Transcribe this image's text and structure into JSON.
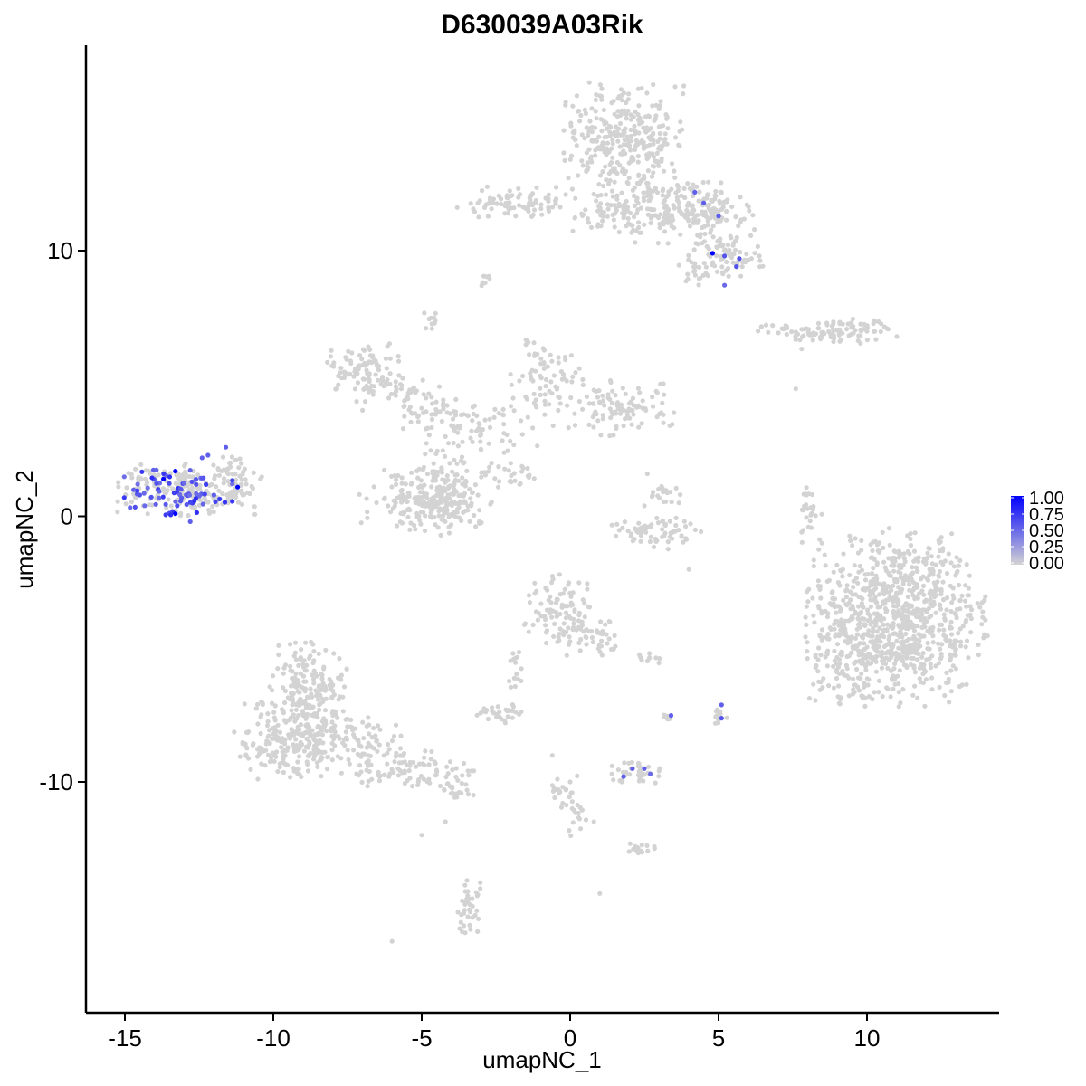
{
  "chart_data": {
    "type": "scatter",
    "title": "D630039A03Rik",
    "xlabel": "umapNC_1",
    "ylabel": "umapNC_2",
    "xlim": [
      -16.5,
      14
    ],
    "ylim": [
      -18,
      17.5
    ],
    "x_ticks": [
      -15,
      -10,
      -5,
      0,
      5,
      10
    ],
    "y_ticks": [
      -10,
      0,
      10
    ],
    "x_tick_labels": [
      "-15",
      "-10",
      "-5",
      "0",
      "5",
      "10"
    ],
    "y_tick_labels": [
      "-10",
      "0",
      "10"
    ],
    "grid": false,
    "legend_position": "right",
    "color_scale": {
      "low_color": "#d3d3d3",
      "high_color": "#0000ff",
      "breaks": [
        1.0,
        0.75,
        0.5,
        0.25,
        0.0
      ],
      "break_labels": [
        "1.00",
        "0.75",
        "0.50",
        "0.25",
        "0.00"
      ]
    },
    "clusters": [
      {
        "cx": 1.8,
        "cy": 14.2,
        "rx": 1.4,
        "ry": 1.4,
        "n": 320
      },
      {
        "cx": 3.2,
        "cy": 11.6,
        "rx": 1.3,
        "ry": 0.9,
        "n": 150
      },
      {
        "cx": 4.7,
        "cy": 11.4,
        "rx": 1.0,
        "ry": 0.6,
        "n": 90
      },
      {
        "cx": 5.3,
        "cy": 9.8,
        "rx": 0.9,
        "ry": 0.6,
        "n": 70
      },
      {
        "cx": 4.4,
        "cy": 9.3,
        "rx": 0.5,
        "ry": 0.4,
        "n": 25
      },
      {
        "cx": -1.8,
        "cy": 11.8,
        "rx": 1.5,
        "ry": 0.4,
        "n": 90
      },
      {
        "cx": 1.2,
        "cy": 11.4,
        "rx": 1.2,
        "ry": 0.5,
        "n": 50
      },
      {
        "cx": -2.8,
        "cy": 8.8,
        "rx": 0.2,
        "ry": 0.2,
        "n": 8
      },
      {
        "cx": -4.6,
        "cy": 7.4,
        "rx": 0.25,
        "ry": 0.3,
        "n": 10
      },
      {
        "cx": 8.0,
        "cy": 6.9,
        "rx": 1.1,
        "ry": 0.25,
        "n": 50
      },
      {
        "cx": 9.5,
        "cy": 7.0,
        "rx": 1.0,
        "ry": 0.35,
        "n": 60
      },
      {
        "cx": -7.0,
        "cy": 5.6,
        "rx": 0.8,
        "ry": 0.6,
        "n": 80
      },
      {
        "cx": -5.8,
        "cy": 4.6,
        "rx": 1.0,
        "ry": 0.5,
        "n": 60
      },
      {
        "cx": -4.4,
        "cy": 3.9,
        "rx": 0.8,
        "ry": 0.4,
        "n": 40
      },
      {
        "cx": -2.8,
        "cy": 3.2,
        "rx": 1.3,
        "ry": 0.8,
        "n": 60
      },
      {
        "cx": -0.8,
        "cy": 5.3,
        "rx": 0.8,
        "ry": 1.0,
        "n": 70
      },
      {
        "cx": 1.4,
        "cy": 4.1,
        "rx": 1.5,
        "ry": 0.7,
        "n": 110
      },
      {
        "cx": -4.2,
        "cy": 1.5,
        "rx": 0.5,
        "ry": 1.4,
        "n": 70
      },
      {
        "cx": -5.5,
        "cy": 0.6,
        "rx": 1.1,
        "ry": 0.8,
        "n": 130
      },
      {
        "cx": -4.0,
        "cy": 0.5,
        "rx": 0.9,
        "ry": 0.8,
        "n": 90
      },
      {
        "cx": -2.2,
        "cy": 1.5,
        "rx": 0.8,
        "ry": 0.3,
        "n": 25
      },
      {
        "cx": 3.0,
        "cy": -0.6,
        "rx": 1.2,
        "ry": 0.45,
        "n": 70
      },
      {
        "cx": 3.2,
        "cy": 0.7,
        "rx": 0.5,
        "ry": 0.4,
        "n": 20
      },
      {
        "cx": 8.1,
        "cy": 0.2,
        "rx": 0.25,
        "ry": 0.8,
        "n": 25
      },
      {
        "cx": 11.0,
        "cy": -3.8,
        "rx": 2.0,
        "ry": 2.2,
        "n": 900
      },
      {
        "cx": 9.5,
        "cy": -5.5,
        "rx": 1.0,
        "ry": 1.2,
        "n": 90
      },
      {
        "cx": -0.4,
        "cy": -3.5,
        "rx": 0.8,
        "ry": 0.9,
        "n": 90
      },
      {
        "cx": 0.8,
        "cy": -4.5,
        "rx": 0.8,
        "ry": 0.5,
        "n": 45
      },
      {
        "cx": -1.8,
        "cy": -5.7,
        "rx": 0.2,
        "ry": 0.7,
        "n": 15
      },
      {
        "cx": -2.4,
        "cy": -7.4,
        "rx": 0.5,
        "ry": 0.25,
        "n": 30
      },
      {
        "cx": 2.7,
        "cy": -5.3,
        "rx": 0.3,
        "ry": 0.15,
        "n": 10
      },
      {
        "cx": 3.3,
        "cy": -7.6,
        "rx": 0.15,
        "ry": 0.15,
        "n": 8
      },
      {
        "cx": 5.1,
        "cy": -7.5,
        "rx": 0.2,
        "ry": 0.3,
        "n": 12
      },
      {
        "cx": 2.3,
        "cy": -9.7,
        "rx": 0.6,
        "ry": 0.3,
        "n": 40
      },
      {
        "cx": -8.8,
        "cy": -6.5,
        "rx": 0.9,
        "ry": 1.2,
        "n": 180
      },
      {
        "cx": -9.5,
        "cy": -8.4,
        "rx": 1.2,
        "ry": 1.0,
        "n": 220
      },
      {
        "cx": -7.3,
        "cy": -8.6,
        "rx": 1.2,
        "ry": 0.8,
        "n": 110
      },
      {
        "cx": -5.2,
        "cy": -9.6,
        "rx": 1.3,
        "ry": 0.5,
        "n": 80
      },
      {
        "cx": -3.8,
        "cy": -10.3,
        "rx": 0.5,
        "ry": 0.2,
        "n": 20
      },
      {
        "cx": -0.3,
        "cy": -10.4,
        "rx": 0.4,
        "ry": 0.5,
        "n": 20
      },
      {
        "cx": 0.2,
        "cy": -11.4,
        "rx": 0.3,
        "ry": 0.5,
        "n": 15
      },
      {
        "cx": 2.3,
        "cy": -12.5,
        "rx": 0.4,
        "ry": 0.2,
        "n": 15
      },
      {
        "cx": -3.4,
        "cy": -14.7,
        "rx": 0.3,
        "ry": 0.7,
        "n": 40
      },
      {
        "cx": -12.8,
        "cy": 1.0,
        "rx": 1.6,
        "ry": 0.7,
        "n": 220
      },
      {
        "cx": -11.3,
        "cy": 1.6,
        "rx": 0.5,
        "ry": 0.5,
        "n": 25
      }
    ],
    "singletons": [
      [
        -6.0,
        -16.0
      ],
      [
        -5.0,
        -12.0
      ],
      [
        -4.2,
        -11.5
      ],
      [
        -3.0,
        2.5
      ],
      [
        -2.0,
        2.0
      ],
      [
        -1.7,
        1.2
      ],
      [
        -1.5,
        4.5
      ],
      [
        0.8,
        -11.5
      ],
      [
        -0.6,
        -9.0
      ],
      [
        0.0,
        -10.0
      ],
      [
        1.0,
        -14.2
      ],
      [
        4.0,
        -2.0
      ],
      [
        2.6,
        1.6
      ],
      [
        6.6,
        7.2
      ],
      [
        7.8,
        6.3
      ],
      [
        7.6,
        4.8
      ],
      [
        5.8,
        9.4
      ],
      [
        7.8,
        -0.6
      ],
      [
        -4.2,
        3.0
      ],
      [
        -3.6,
        2.0
      ]
    ],
    "expressing_cells": [
      {
        "x": 4.2,
        "y": 12.2,
        "v": 0.55
      },
      {
        "x": 4.5,
        "y": 11.8,
        "v": 0.55
      },
      {
        "x": 5.0,
        "y": 11.3,
        "v": 0.55
      },
      {
        "x": 4.8,
        "y": 9.9,
        "v": 1.0
      },
      {
        "x": 5.2,
        "y": 9.8,
        "v": 0.6
      },
      {
        "x": 5.7,
        "y": 9.7,
        "v": 0.6
      },
      {
        "x": 5.6,
        "y": 9.4,
        "v": 0.6
      },
      {
        "x": 5.2,
        "y": 8.7,
        "v": 0.5
      },
      {
        "x": 3.4,
        "y": -7.5,
        "v": 0.55
      },
      {
        "x": 5.1,
        "y": -7.1,
        "v": 0.55
      },
      {
        "x": 5.1,
        "y": -7.6,
        "v": 0.6
      },
      {
        "x": 1.8,
        "y": -9.8,
        "v": 0.55
      },
      {
        "x": 2.1,
        "y": -9.5,
        "v": 0.55
      },
      {
        "x": 2.5,
        "y": -9.5,
        "v": 0.55
      },
      {
        "x": 2.7,
        "y": -9.7,
        "v": 0.5
      },
      {
        "x": -13.7,
        "y": 1.4,
        "v": 1.0
      },
      {
        "x": -13.3,
        "y": 1.7,
        "v": 1.0
      },
      {
        "x": -13.3,
        "y": 0.1,
        "v": 1.0
      },
      {
        "x": -11.2,
        "y": 1.1,
        "v": 1.0
      },
      {
        "x": -12.4,
        "y": 2.2,
        "v": 0.55
      },
      {
        "x": -12.2,
        "y": 2.3,
        "v": 0.55
      },
      {
        "x": -11.6,
        "y": 2.6,
        "v": 0.55
      },
      {
        "x": -12.8,
        "y": -0.2,
        "v": 0.55
      },
      {
        "x": -12.6,
        "y": 1.2,
        "v": 0.6
      },
      {
        "x": -12.0,
        "y": 0.8,
        "v": 0.55
      },
      {
        "x": -14.5,
        "y": 0.8,
        "v": 0.6
      }
    ],
    "expressing_cluster": {
      "cx": -13.2,
      "cy": 0.9,
      "rx": 1.4,
      "ry": 0.65,
      "n": 75,
      "vmin": 0.45,
      "vmax": 0.8
    }
  }
}
